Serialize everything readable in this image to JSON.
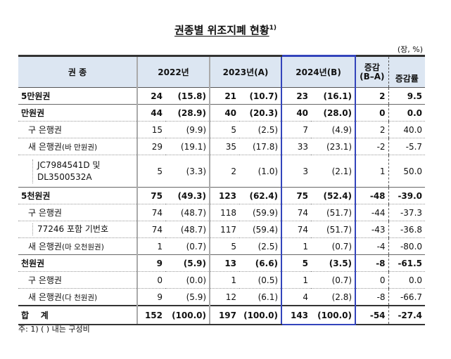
{
  "title": "권종별 위조지폐 현황",
  "title_sup": "1)",
  "unit": "(장, %)",
  "headers": {
    "type": "권 종",
    "y2022": "2022년",
    "y2023": "2023년(A)",
    "y2024": "2024년(B)",
    "change": "증감",
    "change_sub": "(B–A)",
    "rate": "증감률"
  },
  "rows": [
    {
      "label": "5만원권",
      "level": 0,
      "v22": "24",
      "p22": "(15.8)",
      "v23": "21",
      "p23": "(10.7)",
      "v24": "23",
      "p24": "(16.1)",
      "chg": "2",
      "rate": "9.5"
    },
    {
      "label": "만원권",
      "level": 0,
      "v22": "44",
      "p22": "(28.9)",
      "v23": "40",
      "p23": "(20.3)",
      "v24": "40",
      "p24": "(28.0)",
      "chg": "0",
      "rate": "0.0"
    },
    {
      "label": "구 은행권",
      "level": 1,
      "v22": "15",
      "p22": "(9.9)",
      "v23": "5",
      "p23": "(2.5)",
      "v24": "7",
      "p24": "(4.9)",
      "chg": "2",
      "rate": "40.0"
    },
    {
      "label": "새 은행권",
      "label_small": "(바 만원권)",
      "level": 1,
      "v22": "29",
      "p22": "(19.1)",
      "v23": "35",
      "p23": "(17.8)",
      "v24": "33",
      "p24": "(23.1)",
      "chg": "-2",
      "rate": "-5.7"
    },
    {
      "label": "JC7984541D 및",
      "label2": "DL3500532A",
      "level": 2,
      "v22": "5",
      "p22": "(3.3)",
      "v23": "2",
      "p23": "(1.0)",
      "v24": "3",
      "p24": "(2.1)",
      "chg": "1",
      "rate": "50.0"
    },
    {
      "label": "5천원권",
      "level": 0,
      "v22": "75",
      "p22": "(49.3)",
      "v23": "123",
      "p23": "(62.4)",
      "v24": "75",
      "p24": "(52.4)",
      "chg": "-48",
      "rate": "-39.0"
    },
    {
      "label": "구 은행권",
      "level": 1,
      "v22": "74",
      "p22": "(48.7)",
      "v23": "118",
      "p23": "(59.9)",
      "v24": "74",
      "p24": "(51.7)",
      "chg": "-44",
      "rate": "-37.3"
    },
    {
      "label": "77246 포함 기번호",
      "level": 2,
      "v22": "74",
      "p22": "(48.7)",
      "v23": "117",
      "p23": "(59.4)",
      "v24": "74",
      "p24": "(51.7)",
      "chg": "-43",
      "rate": "-36.8"
    },
    {
      "label": "새 은행권",
      "label_small": "(마 오천원권)",
      "level": 1,
      "v22": "1",
      "p22": "(0.7)",
      "v23": "5",
      "p23": "(2.5)",
      "v24": "1",
      "p24": "(0.7)",
      "chg": "-4",
      "rate": "-80.0"
    },
    {
      "label": "천원권",
      "level": 0,
      "v22": "9",
      "p22": "(5.9)",
      "v23": "13",
      "p23": "(6.6)",
      "v24": "5",
      "p24": "(3.5)",
      "chg": "-8",
      "rate": "-61.5"
    },
    {
      "label": "구 은행권",
      "level": 1,
      "v22": "0",
      "p22": "(0.0)",
      "v23": "1",
      "p23": "(0.5)",
      "v24": "1",
      "p24": "(0.7)",
      "chg": "0",
      "rate": "0.0"
    },
    {
      "label": "새 은행권",
      "label_small": "(다 천원권)",
      "level": 1,
      "v22": "9",
      "p22": "(5.9)",
      "v23": "12",
      "p23": "(6.1)",
      "v24": "4",
      "p24": "(2.8)",
      "chg": "-8",
      "rate": "-66.7"
    }
  ],
  "total": {
    "label": "합    계",
    "v22": "152",
    "p22": "(100.0)",
    "v23": "197",
    "p23": "(100.0)",
    "v24": "143",
    "p24": "(100.0)",
    "chg": "-54",
    "rate": "-27.4"
  },
  "note": "주: 1) (   ) 내는 구성비"
}
